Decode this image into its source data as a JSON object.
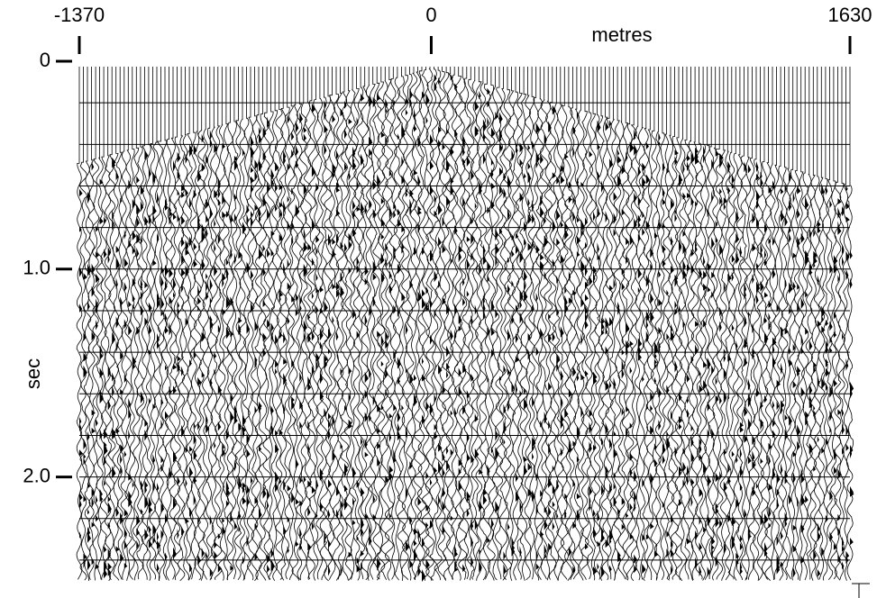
{
  "chart_data": {
    "type": "seismic",
    "xlabel": "metres",
    "ylabel": "sec",
    "xlim": [
      -1370,
      1630
    ],
    "xticks": [
      -1370,
      0,
      1630
    ],
    "ylim": [
      0,
      2.5
    ],
    "yticks": [
      0,
      {
        "value": 1,
        "label": "1.0"
      },
      {
        "value": 2,
        "label": "2.0"
      }
    ],
    "color": "#000000"
  }
}
